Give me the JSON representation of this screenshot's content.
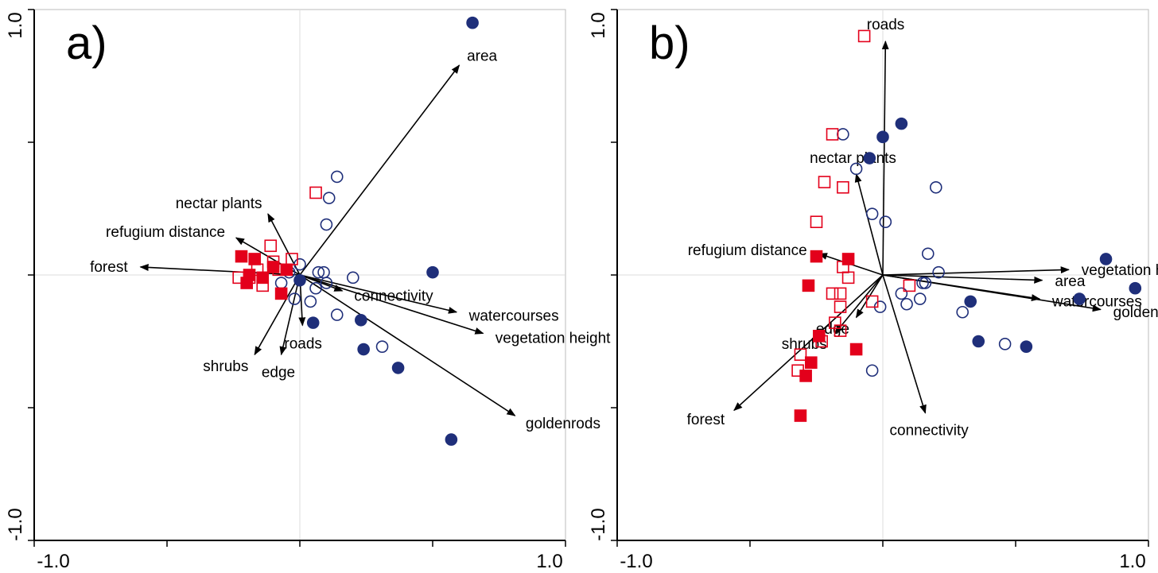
{
  "chart_data": [
    {
      "type": "biplot",
      "panel_label": "a)",
      "xlim": [
        -1,
        1
      ],
      "ylim": [
        -1,
        1
      ],
      "xticks": [
        {
          "value": -1,
          "label": "-1.0"
        },
        {
          "value": 1,
          "label": "1.0"
        }
      ],
      "yticks": [
        {
          "value": -1,
          "label": "-1.0"
        },
        {
          "value": 1,
          "label": "1.0"
        }
      ],
      "minor_ticks": [
        -0.5,
        0,
        0.5
      ],
      "vectors": [
        {
          "name": "area",
          "x": 0.6,
          "y": 0.79
        },
        {
          "name": "nectar plants",
          "x": -0.12,
          "y": 0.23
        },
        {
          "name": "refugium distance",
          "x": -0.24,
          "y": 0.14
        },
        {
          "name": "forest",
          "x": -0.6,
          "y": 0.03
        },
        {
          "name": "shrubs",
          "x": -0.17,
          "y": -0.3
        },
        {
          "name": "edge",
          "x": -0.07,
          "y": -0.3
        },
        {
          "name": "roads",
          "x": 0.01,
          "y": -0.19
        },
        {
          "name": "connectivity",
          "x": 0.16,
          "y": -0.06
        },
        {
          "name": "watercourses",
          "x": 0.59,
          "y": -0.14
        },
        {
          "name": "vegetation height",
          "x": 0.69,
          "y": -0.22
        },
        {
          "name": "goldenrods",
          "x": 0.81,
          "y": -0.53
        }
      ],
      "groups": [
        {
          "marker": "circle",
          "filled": true,
          "color": "#1f2f7a",
          "x": [
            0.65,
            0.5,
            0.0,
            0.05,
            0.23,
            0.24,
            0.37,
            0.57
          ],
          "y": [
            0.95,
            0.01,
            -0.02,
            -0.18,
            -0.17,
            -0.28,
            -0.35,
            -0.62
          ]
        },
        {
          "marker": "circle",
          "filled": false,
          "color": "#1f2f7a",
          "x": [
            0.14,
            0.11,
            0.1,
            0.0,
            0.07,
            0.09,
            0.2,
            0.1,
            0.06,
            -0.02,
            0.04,
            0.14,
            0.31,
            -0.07,
            -0.04
          ],
          "y": [
            0.37,
            0.29,
            0.19,
            0.04,
            0.01,
            0.01,
            -0.01,
            -0.03,
            -0.05,
            -0.09,
            -0.1,
            -0.15,
            -0.27,
            -0.03,
            0.01
          ]
        },
        {
          "marker": "square",
          "filled": false,
          "color": "#e3001b",
          "x": [
            0.06,
            -0.11,
            -0.03,
            -0.1,
            -0.23,
            -0.14,
            -0.08,
            -0.16,
            -0.19
          ],
          "y": [
            0.31,
            0.11,
            0.06,
            0.05,
            -0.01,
            -0.04,
            0.02,
            0.02,
            -0.01
          ]
        },
        {
          "marker": "square",
          "filled": true,
          "color": "#e3001b",
          "x": [
            -0.22,
            -0.17,
            -0.1,
            -0.19,
            -0.2,
            -0.14,
            -0.07,
            -0.05
          ],
          "y": [
            0.07,
            0.06,
            0.03,
            0.0,
            -0.03,
            -0.01,
            -0.07,
            0.02
          ]
        }
      ]
    },
    {
      "type": "biplot",
      "panel_label": "b)",
      "xlim": [
        -1,
        1
      ],
      "ylim": [
        -1,
        1
      ],
      "xticks": [
        {
          "value": -1,
          "label": "-1.0"
        },
        {
          "value": 1,
          "label": "1.0"
        }
      ],
      "yticks": [
        {
          "value": -1,
          "label": "-1.0"
        },
        {
          "value": 1,
          "label": "1.0"
        }
      ],
      "minor_ticks": [
        -0.5,
        0,
        0.5
      ],
      "vectors": [
        {
          "name": "roads",
          "x": 0.01,
          "y": 0.88
        },
        {
          "name": "nectar plants",
          "x": -0.1,
          "y": 0.38
        },
        {
          "name": "refugium distance",
          "x": -0.24,
          "y": 0.08
        },
        {
          "name": "forest",
          "x": -0.56,
          "y": -0.51
        },
        {
          "name": "shrubs",
          "x": -0.18,
          "y": -0.22
        },
        {
          "name": "edge",
          "x": -0.1,
          "y": -0.16
        },
        {
          "name": "connectivity",
          "x": 0.16,
          "y": -0.52
        },
        {
          "name": "vegetation height",
          "x": 0.7,
          "y": 0.02
        },
        {
          "name": "area",
          "x": 0.6,
          "y": -0.02
        },
        {
          "name": "watercourses",
          "x": 0.59,
          "y": -0.09
        },
        {
          "name": "goldenrods",
          "x": 0.82,
          "y": -0.13
        }
      ],
      "groups": [
        {
          "marker": "circle",
          "filled": true,
          "color": "#1f2f7a",
          "x": [
            0.0,
            0.07,
            -0.05,
            0.84,
            0.95,
            0.74,
            0.33,
            0.36,
            0.54
          ],
          "y": [
            0.52,
            0.57,
            0.44,
            0.06,
            -0.05,
            -0.09,
            -0.1,
            -0.25,
            -0.27
          ]
        },
        {
          "marker": "circle",
          "filled": false,
          "color": "#1f2f7a",
          "x": [
            -0.15,
            -0.1,
            0.2,
            -0.04,
            0.01,
            0.17,
            0.21,
            0.16,
            0.14,
            0.09,
            0.07,
            -0.01,
            0.3,
            0.46,
            -0.04,
            0.15
          ],
          "y": [
            0.53,
            0.4,
            0.33,
            0.23,
            0.2,
            0.08,
            0.01,
            -0.03,
            -0.09,
            -0.11,
            -0.07,
            -0.12,
            -0.14,
            -0.26,
            -0.36,
            -0.03
          ]
        },
        {
          "marker": "square",
          "filled": false,
          "color": "#e3001b",
          "x": [
            -0.07,
            -0.19,
            -0.22,
            -0.15,
            -0.25,
            -0.15,
            -0.13,
            -0.19,
            -0.16,
            -0.16,
            -0.18,
            -0.16,
            -0.23,
            -0.31,
            -0.32,
            -0.04,
            0.1
          ],
          "y": [
            0.9,
            0.53,
            0.35,
            0.33,
            0.2,
            0.03,
            -0.01,
            -0.07,
            -0.07,
            -0.12,
            -0.18,
            -0.21,
            -0.25,
            -0.3,
            -0.36,
            -0.1,
            -0.04
          ]
        },
        {
          "marker": "square",
          "filled": true,
          "color": "#e3001b",
          "x": [
            -0.25,
            -0.13,
            -0.28,
            -0.24,
            -0.1,
            -0.27,
            -0.29,
            -0.31
          ],
          "y": [
            0.07,
            0.06,
            -0.04,
            -0.23,
            -0.28,
            -0.33,
            -0.38,
            -0.53
          ]
        }
      ]
    }
  ]
}
